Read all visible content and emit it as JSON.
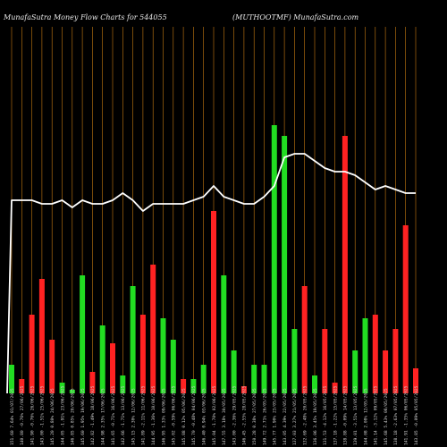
{
  "header": {
    "left": "MunafaSutra  Money Flow  Charts for 544055",
    "right": "(MUTHOOTMF)  MunafaSutra.com"
  },
  "chart_data": {
    "type": "bar",
    "title": "MunafaSutra  Money Flow  Charts for 544055",
    "subtitle": "(MUTHOOTMF)  MunafaSutra.com",
    "ylim": [
      0,
      100
    ],
    "grid": true,
    "grid_color": "#c77b12",
    "colors": {
      "up": "#22dd22",
      "down": "#ff2222",
      "line": "#ffffff",
      "background": "#000000"
    },
    "categories": [
      "151.60 7.64% 01/07/2025",
      "140.80 -0.76% 27/06/2025",
      "141.90 -0.76% 26/06/2025",
      "143.00 -1.51% 25/06/2025",
      "145.20 0.80% 24/06/2025",
      "144.05 -1.91% 23/06/2025",
      "146.85 0.85% 20/06/2025",
      "145.60 1.95% 19/06/2025",
      "142.82 -1.49% 18/06/2025",
      "144.98 2.35% 17/06/2025",
      "141.65 -0.71% 16/06/2025",
      "142.66 -1.71% 13/06/2025",
      "145.15 2.30% 12/06/2025",
      "141.89 -2.11% 11/06/2025",
      "144.95 -1.36% 10/06/2025",
      "146.95 1.33% 09/06/2025",
      "145.02 -0.59% 06/06/2025",
      "145.88 0.12% 05/06/2025",
      "145.70 -0.48% 04/06/2025",
      "146.40 0.94% 03/06/2025",
      "145.04 -1.70% 02/06/2025",
      "147.55 3.18% 30/05/2025",
      "143.00 -2.36% 29/05/2025",
      "146.45 -2.55% 28/05/2025",
      "150.28 0.38% 27/05/2025",
      "149.72 2.71% 26/05/2025",
      "145.77 1.90% 23/05/2025",
      "143.05 4.39% 22/05/2025",
      "137.03 3.27% 21/05/2025",
      "132.69 -2.48% 20/05/2025",
      "136.06 3.45% 19/05/2025",
      "131.53 -4.12% 16/05/2025",
      "137.18 -1.22% 15/05/2025",
      "138.88 -0.09% 14/05/2025",
      "139.01 -3.51% 13/05/2025",
      "144.08 2.08% 12/05/2025",
      "141.14 -3.12% 09/05/2025",
      "145.68 5.43% 08/05/2025",
      "138.18 -2.63% 07/05/2025",
      "141.91 -1.35% 06/05/2025",
      "143.85 -0.09% 05/05/2025"
    ],
    "bar_colors": [
      "green",
      "red",
      "red",
      "red",
      "red",
      "green",
      "green",
      "green",
      "red",
      "green",
      "red",
      "green",
      "green",
      "red",
      "red",
      "green",
      "green",
      "red",
      "green",
      "green",
      "red",
      "green",
      "green",
      "red",
      "green",
      "green",
      "green",
      "green",
      "green",
      "red",
      "green",
      "red",
      "red",
      "red",
      "green",
      "green",
      "red",
      "red",
      "red",
      "red",
      "red"
    ],
    "values": [
      8,
      4,
      22,
      32,
      15,
      3,
      1,
      33,
      6,
      19,
      14,
      5,
      30,
      22,
      36,
      21,
      15,
      4,
      4,
      8,
      51,
      33,
      12,
      2,
      8,
      8,
      75,
      72,
      18,
      30,
      5,
      18,
      3,
      72,
      12,
      21,
      22,
      12,
      18,
      47,
      7
    ],
    "line": [
      54,
      54,
      54,
      53,
      53,
      54,
      52,
      54,
      53,
      53,
      54,
      56,
      54,
      51,
      53,
      53,
      53,
      53,
      54,
      55,
      58,
      55,
      54,
      53,
      53,
      55,
      58,
      66,
      67,
      67,
      65,
      63,
      62,
      62,
      61,
      59,
      57,
      58,
      57,
      56,
      56
    ]
  }
}
